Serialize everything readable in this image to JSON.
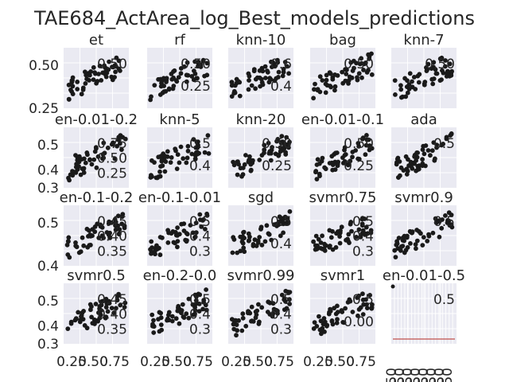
{
  "chart_data": {
    "type": "scatter",
    "title": "TAE684_ActArea_log_Best_models_predictions",
    "grid": true,
    "layout": {
      "rows": 4,
      "cols": 5
    },
    "x_ticks_shared": [
      "0.25",
      "0.50",
      "0.75"
    ],
    "panels": [
      {
        "title": "et",
        "row": 0,
        "col": 0,
        "yticks_left": [
          "0.50",
          "0.25"
        ],
        "inner_labels": [
          "0.50"
        ],
        "seed": 11
      },
      {
        "title": "rf",
        "row": 0,
        "col": 1,
        "yticks_left": [],
        "inner_labels": [
          "0.50",
          "0.25"
        ],
        "seed": 12
      },
      {
        "title": "knn-10",
        "row": 0,
        "col": 2,
        "yticks_left": [],
        "inner_labels": [
          "0.6",
          "0.4"
        ],
        "seed": 13
      },
      {
        "title": "bag",
        "row": 0,
        "col": 3,
        "yticks_left": [],
        "inner_labels": [
          "0.50"
        ],
        "seed": 14
      },
      {
        "title": "knn-7",
        "row": 0,
        "col": 4,
        "yticks_left": [],
        "inner_labels": [
          "0.50"
        ],
        "seed": 15
      },
      {
        "title": "en-0.01-0.2",
        "row": 1,
        "col": 0,
        "yticks_left": [
          "0.5",
          "0.4",
          "0.3"
        ],
        "inner_labels": [
          "0.75",
          "0.50",
          "0.25"
        ],
        "seed": 21
      },
      {
        "title": "knn-5",
        "row": 1,
        "col": 1,
        "yticks_left": [],
        "inner_labels": [
          "0.5",
          "0.4"
        ],
        "seed": 22
      },
      {
        "title": "knn-20",
        "row": 1,
        "col": 2,
        "yticks_left": [],
        "inner_labels": [
          "0.50",
          "0.25"
        ],
        "seed": 23
      },
      {
        "title": "en-0.01-0.1",
        "row": 1,
        "col": 3,
        "yticks_left": [],
        "inner_labels": [
          "0.50",
          "0.25"
        ],
        "seed": 24
      },
      {
        "title": "ada",
        "row": 1,
        "col": 4,
        "yticks_left": [],
        "inner_labels": [
          "0.5"
        ],
        "seed": 25
      },
      {
        "title": "en-0.1-0.2",
        "row": 2,
        "col": 0,
        "yticks_left": [
          "0.5",
          "0.4"
        ],
        "inner_labels": [
          "0.45",
          "0.40",
          "0.35"
        ],
        "seed": 31
      },
      {
        "title": "en-0.1-0.01",
        "row": 2,
        "col": 1,
        "yticks_left": [],
        "inner_labels": [
          "0.5",
          "0.4",
          "0.3"
        ],
        "seed": 32
      },
      {
        "title": "sgd",
        "row": 2,
        "col": 2,
        "yticks_left": [],
        "inner_labels": [
          "0.5",
          "0.4"
        ],
        "seed": 33
      },
      {
        "title": "svmr0.75",
        "row": 2,
        "col": 3,
        "yticks_left": [],
        "inner_labels": [
          "0.5",
          "0.4",
          "0.3"
        ],
        "seed": 34
      },
      {
        "title": "svmr0.9",
        "row": 2,
        "col": 4,
        "yticks_left": [],
        "inner_labels": [
          "0.5"
        ],
        "seed": 35
      },
      {
        "title": "svmr0.5",
        "row": 3,
        "col": 0,
        "yticks_left": [
          "0.5",
          "0.4",
          "0.3"
        ],
        "inner_labels": [
          "0.45",
          "0.40",
          "0.35"
        ],
        "seed": 41
      },
      {
        "title": "en-0.2-0.0",
        "row": 3,
        "col": 1,
        "yticks_left": [],
        "inner_labels": [
          "0.5",
          "0.4",
          "0.3"
        ],
        "seed": 42
      },
      {
        "title": "svmr0.99",
        "row": 3,
        "col": 2,
        "yticks_left": [],
        "inner_labels": [
          "0.5",
          "0.4",
          "0.3"
        ],
        "seed": 43
      },
      {
        "title": "svmr1",
        "row": 3,
        "col": 3,
        "yticks_left": [],
        "inner_labels": [
          "0.5",
          "0.00"
        ],
        "seed": 44
      },
      {
        "title": "en-0.01-0.5",
        "row": 3,
        "col": 4,
        "yticks_left": [],
        "inner_labels": [
          "0.5"
        ],
        "seed": 45,
        "collapsed": true
      }
    ],
    "xlim": [
      0.1,
      0.8
    ],
    "ylim": [
      0.2,
      0.62
    ]
  }
}
